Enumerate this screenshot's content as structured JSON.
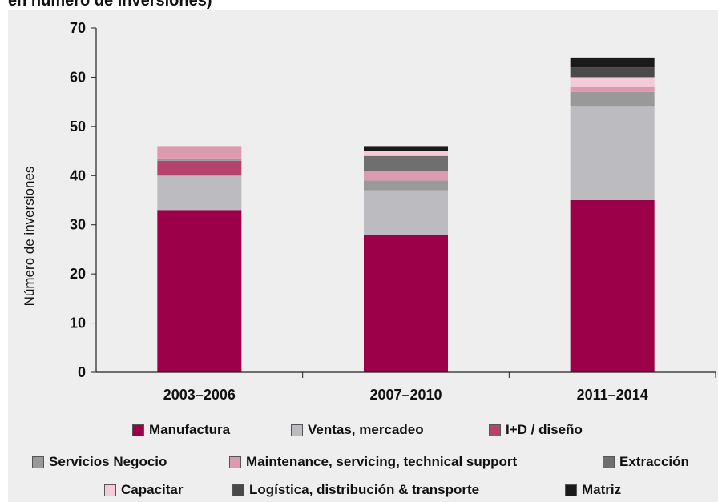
{
  "page": {
    "title": "en número de inversiones)"
  },
  "chart_data": {
    "type": "bar",
    "stacked": true,
    "categories": [
      "2003–2006",
      "2007–2010",
      "2011–2014"
    ],
    "ylabel": "Número de inversiones",
    "xlabel": "",
    "ylim": [
      0,
      70
    ],
    "yticks": [
      0,
      10,
      20,
      30,
      40,
      50,
      60,
      70
    ],
    "grid": false,
    "legend_position": "bottom",
    "series": [
      {
        "name": "Manufactura",
        "color": "#9b0049",
        "values": [
          33,
          28,
          35
        ]
      },
      {
        "name": "Ventas, mercadeo",
        "color": "#bcbcc0",
        "values": [
          7,
          9,
          19
        ]
      },
      {
        "name": "I+D / diseño",
        "color": "#b5436e",
        "values": [
          3,
          0,
          0
        ]
      },
      {
        "name": "Servicios Negocio",
        "color": "#999999",
        "values": [
          0.5,
          2,
          3
        ]
      },
      {
        "name": "Maintenance, servicing, technical support",
        "color": "#dd9aae",
        "values": [
          2.5,
          2,
          1
        ]
      },
      {
        "name": "Extracción",
        "color": "#6f6f6f",
        "values": [
          0,
          3,
          0
        ]
      },
      {
        "name": "Capacitar",
        "color": "#f6cbd9",
        "values": [
          0,
          1,
          2
        ]
      },
      {
        "name": "Logística, distribución & transporte",
        "color": "#4a4a4a",
        "values": [
          0,
          0,
          2
        ]
      },
      {
        "name": "Matriz",
        "color": "#1a1a1a",
        "values": [
          0,
          1,
          2
        ]
      }
    ]
  }
}
